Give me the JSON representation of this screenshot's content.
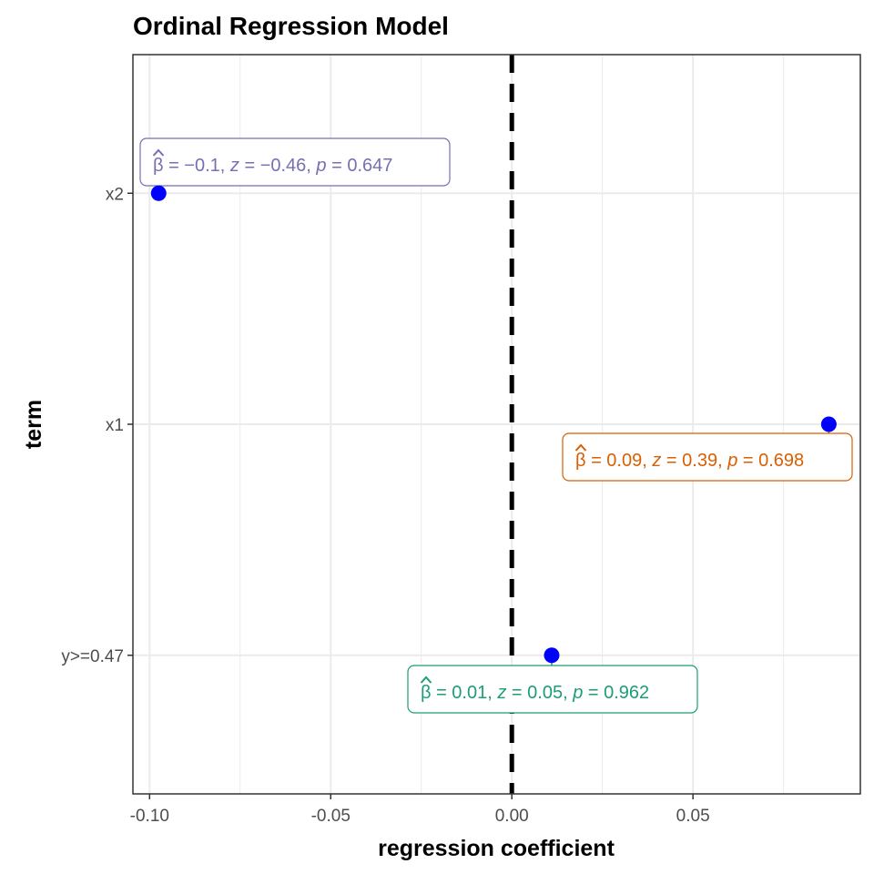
{
  "chart_data": {
    "type": "scatter",
    "title": "Ordinal Regression Model",
    "xlabel": "regression coefficient",
    "ylabel": "term",
    "xlim": [
      -0.1046,
      0.0962
    ],
    "x_ticks": [
      -0.1,
      -0.05,
      0.0,
      0.05
    ],
    "x_tick_labels": [
      "-0.10",
      "-0.05",
      "0.00",
      "0.05"
    ],
    "categories": [
      "x2",
      "x1",
      "y>=0.47"
    ],
    "points": [
      {
        "term": "x2",
        "estimate": -0.0975,
        "color": "#7570b3",
        "label": {
          "beta": "-0.1",
          "z": "-0.46",
          "p": "0.647"
        }
      },
      {
        "term": "x1",
        "estimate": 0.0875,
        "color": "#d95f02",
        "label": {
          "beta": "0.09",
          "z": "0.39",
          "p": "0.698"
        }
      },
      {
        "term": "y>=0.47",
        "estimate": 0.011,
        "color": "#1b9e77",
        "label": {
          "beta": "0.01",
          "z": "0.05",
          "p": "0.962"
        }
      }
    ],
    "reference_line": {
      "x": 0,
      "style": "dashed",
      "color": "#000000"
    },
    "point_color": "#0000ff",
    "grid": true,
    "theme": "bw"
  }
}
